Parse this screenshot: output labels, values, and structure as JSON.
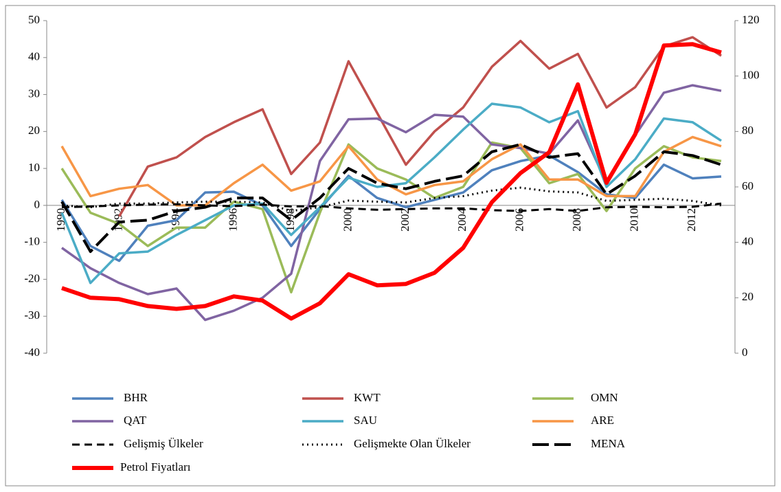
{
  "chart_data": {
    "type": "line",
    "categories": [
      "1990",
      null,
      "1992",
      null,
      "1994",
      null,
      "1996",
      null,
      "1998",
      null,
      "2000",
      null,
      "2002",
      null,
      "2004",
      null,
      "2006",
      null,
      "2008",
      null,
      "2010",
      null,
      "2012",
      null
    ],
    "ylim": [
      -40,
      50
    ],
    "yticks": [
      -40,
      -30,
      -20,
      -10,
      0,
      10,
      20,
      30,
      40,
      50
    ],
    "y2lim": [
      0,
      120
    ],
    "y2ticks": [
      0,
      20,
      40,
      60,
      80,
      100,
      120
    ],
    "legend": "bottom",
    "series": [
      {
        "name": "BHR",
        "color": "#4f81bd",
        "values": [
          1.5,
          -11,
          -15,
          -5.5,
          -4,
          3.5,
          3.7,
          0,
          -11,
          -1,
          8,
          2,
          -0.5,
          1.5,
          3.5,
          9.5,
          12,
          13.5,
          9,
          3,
          2,
          11,
          7.3,
          7.8
        ]
      },
      {
        "name": "KWT",
        "color": "#c0504d",
        "values": [
          null,
          null,
          -3,
          10.5,
          13,
          18.5,
          22.5,
          26,
          8.5,
          17,
          39,
          25,
          11,
          20,
          26.5,
          37.5,
          44.5,
          37,
          41,
          26.5,
          32,
          43,
          45.5,
          40.5
        ]
      },
      {
        "name": "OMN",
        "color": "#9bbb59",
        "values": [
          10,
          -2,
          -5,
          -11,
          -6,
          -6,
          1,
          -1,
          -23.5,
          -2,
          16.5,
          10,
          7,
          2,
          5,
          17,
          15.5,
          6,
          8.5,
          -1.5,
          10,
          16,
          13,
          12
        ]
      },
      {
        "name": "QAT",
        "color": "#8064a2",
        "values": [
          -11.5,
          -17,
          -21,
          -24,
          -22.5,
          -31,
          -28.5,
          -25,
          -18.5,
          12,
          23.3,
          23.5,
          19.8,
          24.5,
          24,
          16.5,
          15.5,
          14,
          23,
          6,
          19,
          30.5,
          32.5,
          31
        ]
      },
      {
        "name": "SAU",
        "color": "#4bacc6",
        "values": [
          -2,
          -21,
          -13,
          -12.5,
          -8,
          -4,
          0,
          0.5,
          -8,
          -0.5,
          7.5,
          5,
          6,
          13,
          20.5,
          27.5,
          26.5,
          22.5,
          25.5,
          5,
          12.5,
          23.5,
          22.5,
          17.5
        ]
      },
      {
        "name": "ARE",
        "color": "#f79646",
        "values": [
          16,
          2.5,
          4.5,
          5.5,
          0,
          0,
          6,
          11,
          4,
          6.5,
          16,
          7,
          3,
          5.5,
          6.5,
          12.5,
          16.5,
          7,
          7,
          2.5,
          2.5,
          14.5,
          18.5,
          16
        ]
      },
      {
        "name": "Gelişmiş Ülkeler",
        "color": "#000000",
        "line_style": "dashed",
        "values": [
          -0.5,
          -0.3,
          0,
          0.2,
          0.3,
          0,
          -0.2,
          0.2,
          -0.3,
          -0.2,
          -0.8,
          -1.2,
          -1,
          -0.8,
          -0.8,
          -1.3,
          -1.5,
          -1,
          -1.5,
          -0.5,
          -0.4,
          -0.5,
          -0.4,
          0.5
        ]
      },
      {
        "name": "Gelişmekte Olan Ülkeler",
        "color": "#000000",
        "line_style": "dotted",
        "values": [
          0,
          -0.5,
          0.5,
          0.5,
          0.8,
          1,
          1,
          0.8,
          -1.5,
          -0.5,
          1.3,
          1,
          0.8,
          2,
          2.5,
          4,
          4.8,
          3.8,
          3.5,
          1.2,
          1.5,
          1.8,
          1.2,
          0
        ]
      },
      {
        "name": "MENA",
        "color": "#000000",
        "line_style": "long-dash",
        "values": [
          1,
          -12.5,
          -4.5,
          -4,
          -1.5,
          -0.5,
          2,
          2,
          -4,
          2,
          10,
          6,
          4.5,
          6.5,
          8,
          14.5,
          16.5,
          13,
          14,
          3,
          8,
          14.5,
          13.5,
          11
        ]
      },
      {
        "name": "Petrol Fiyatları",
        "color": "#ff0000",
        "axis": "y2",
        "values": [
          23.5,
          20,
          19.5,
          17,
          16,
          17,
          20.5,
          19,
          12.5,
          18,
          28.5,
          24.5,
          25,
          29,
          38,
          54.5,
          65,
          72.5,
          97,
          61.5,
          79,
          111,
          111.5,
          108.5
        ]
      }
    ]
  }
}
